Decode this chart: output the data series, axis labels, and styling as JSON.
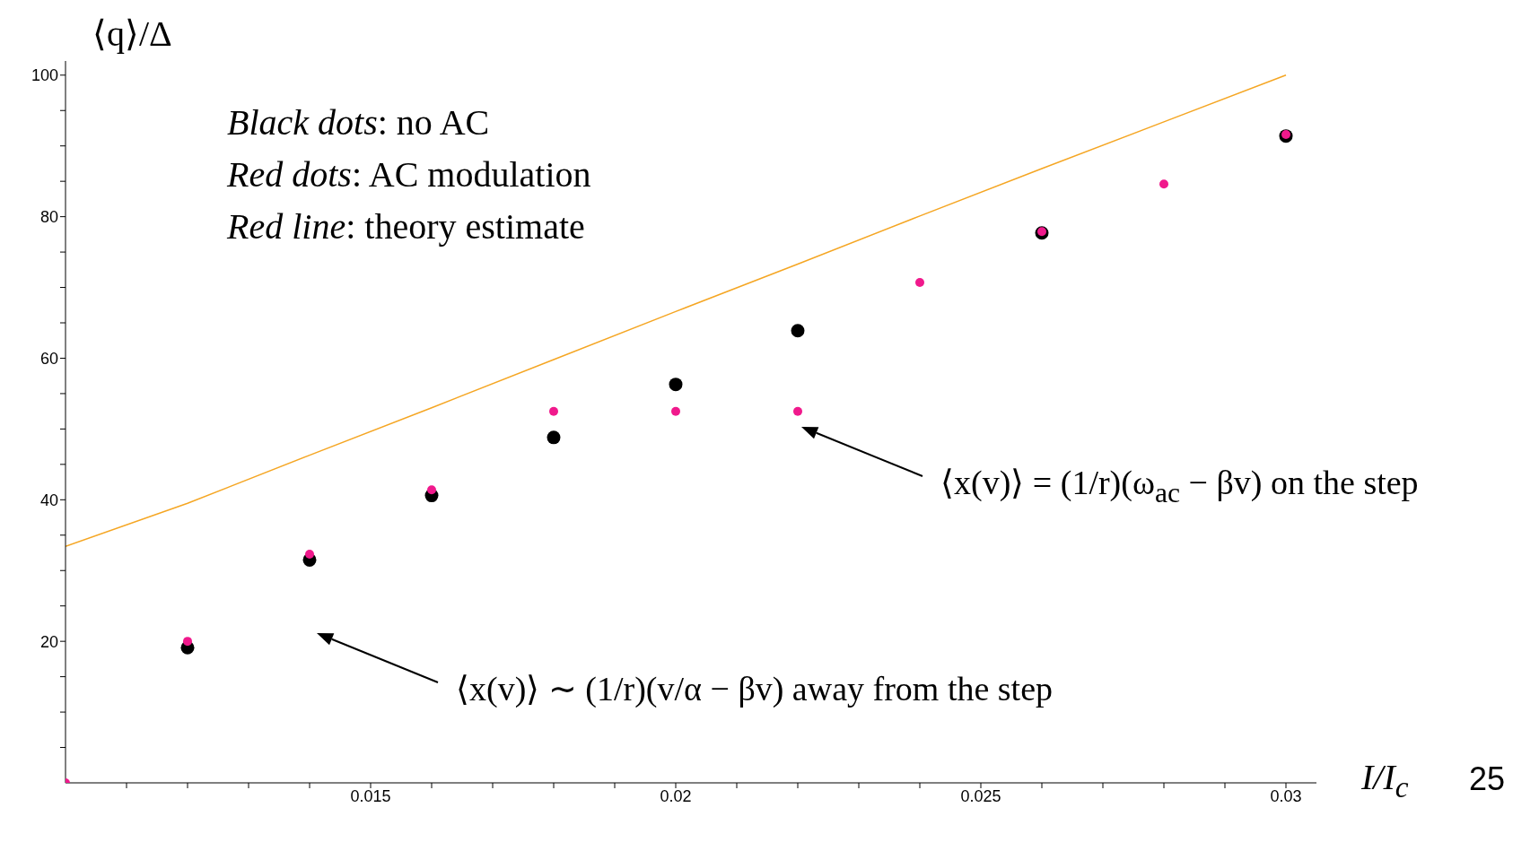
{
  "chart_data": {
    "type": "scatter",
    "xlabel": "I/I$_{c}$",
    "ylabel": "⟨q⟩/Δ",
    "x": [
      0.01,
      0.012,
      0.014,
      0.016,
      0.018,
      0.02,
      0.022,
      0.024,
      0.026,
      0.028,
      0.03
    ],
    "series": [
      {
        "color": "#000000",
        "marker": "circle",
        "values": [
          null,
          19.1,
          31.5,
          40.6,
          48.8,
          56.3,
          63.9,
          null,
          77.7,
          null,
          91.4
        ]
      },
      {
        "color": "#f0198c",
        "marker": "circle",
        "values": [
          0,
          20,
          32.3,
          41.4,
          52.5,
          52.5,
          52.5,
          70.7,
          77.9,
          84.6,
          91.6
        ]
      },
      {
        "type": "line",
        "color": "#f5a623",
        "values": [
          33.4,
          39.5,
          46.3,
          53,
          59.8,
          66.6,
          73.3,
          80.1,
          86.8,
          93.4,
          100
        ]
      }
    ],
    "xlim": [
      0.01,
      0.0305
    ],
    "ylim": [
      0,
      102
    ],
    "xticks": [
      {
        "value": 0.011,
        "label": null
      },
      {
        "value": 0.012,
        "label": null
      },
      {
        "value": 0.013,
        "label": null
      },
      {
        "value": 0.014,
        "label": null
      },
      0.015,
      {
        "value": 0.016,
        "label": null
      },
      {
        "value": 0.017,
        "label": null
      },
      {
        "value": 0.018,
        "label": null
      },
      {
        "value": 0.019,
        "label": null
      },
      0.02,
      {
        "value": 0.021,
        "label": null
      },
      {
        "value": 0.022,
        "label": null
      },
      {
        "value": 0.023,
        "label": null
      },
      {
        "value": 0.024,
        "label": null
      },
      0.025,
      {
        "value": 0.026,
        "label": null
      },
      {
        "value": 0.027,
        "label": null
      },
      {
        "value": 0.028,
        "label": null
      },
      {
        "value": 0.029,
        "label": null
      },
      0.03
    ],
    "yticks": [
      {
        "value": 5,
        "label": null
      },
      {
        "value": 10,
        "label": null
      },
      {
        "value": 15,
        "label": null
      },
      20,
      {
        "value": 25,
        "label": null
      },
      {
        "value": 30,
        "label": null
      },
      {
        "value": 35,
        "label": null
      },
      40,
      {
        "value": 45,
        "label": null
      },
      {
        "value": 50,
        "label": null
      },
      {
        "value": 55,
        "label": null
      },
      60,
      {
        "value": 65,
        "label": null
      },
      {
        "value": 70,
        "label": null
      },
      {
        "value": 75,
        "label": null
      },
      80,
      {
        "value": 85,
        "label": null
      },
      {
        "value": 90,
        "label": null
      },
      {
        "value": 95,
        "label": null
      },
      100
    ],
    "annotations": [
      "Black dots: no AC",
      "Red dots: AC modulation",
      "Red line: theory estimate",
      "⟨x(v)⟩ = (1/r)(ω$_{ac}$ − βv) on the step",
      "⟨x(v)⟩ ∼ (1/r)(v/α − βv) away from the step",
      "25"
    ]
  }
}
